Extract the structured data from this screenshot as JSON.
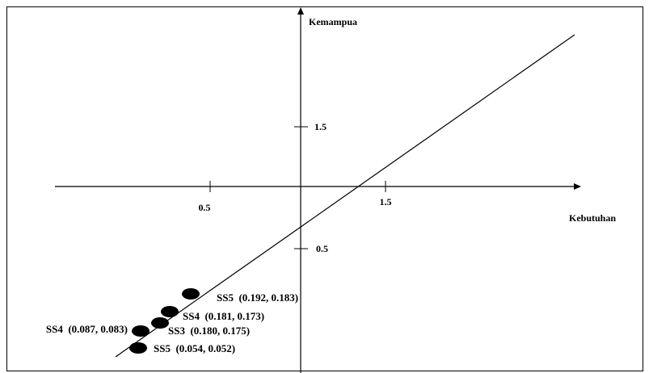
{
  "chart_data": {
    "type": "scatter",
    "xlabel": "Kebutuhan",
    "ylabel": "Kemampua",
    "x_ticks": [
      "0.5",
      "1.5"
    ],
    "y_ticks": [
      "1.5",
      "0.5"
    ],
    "points": [
      {
        "label": "SS5",
        "text": "SS5  (0.192, 0.183)",
        "x": 0.192,
        "y": 0.183
      },
      {
        "label": "SS4",
        "text": "SS4  (0.181, 0.173)",
        "x": 0.181,
        "y": 0.173
      },
      {
        "label": "SS3",
        "text": "SS3  (0.180, 0.175)",
        "x": 0.18,
        "y": 0.175
      },
      {
        "label": "SS4",
        "text": "SS4  (0.087, 0.083)",
        "x": 0.087,
        "y": 0.083
      },
      {
        "label": "SS5",
        "text": "SS5  (0.054, 0.052)",
        "x": 0.054,
        "y": 0.052
      }
    ],
    "trend_line": true,
    "grid": false,
    "legend": "none"
  },
  "colors": {
    "ink": "#000000",
    "background": "#ffffff"
  }
}
